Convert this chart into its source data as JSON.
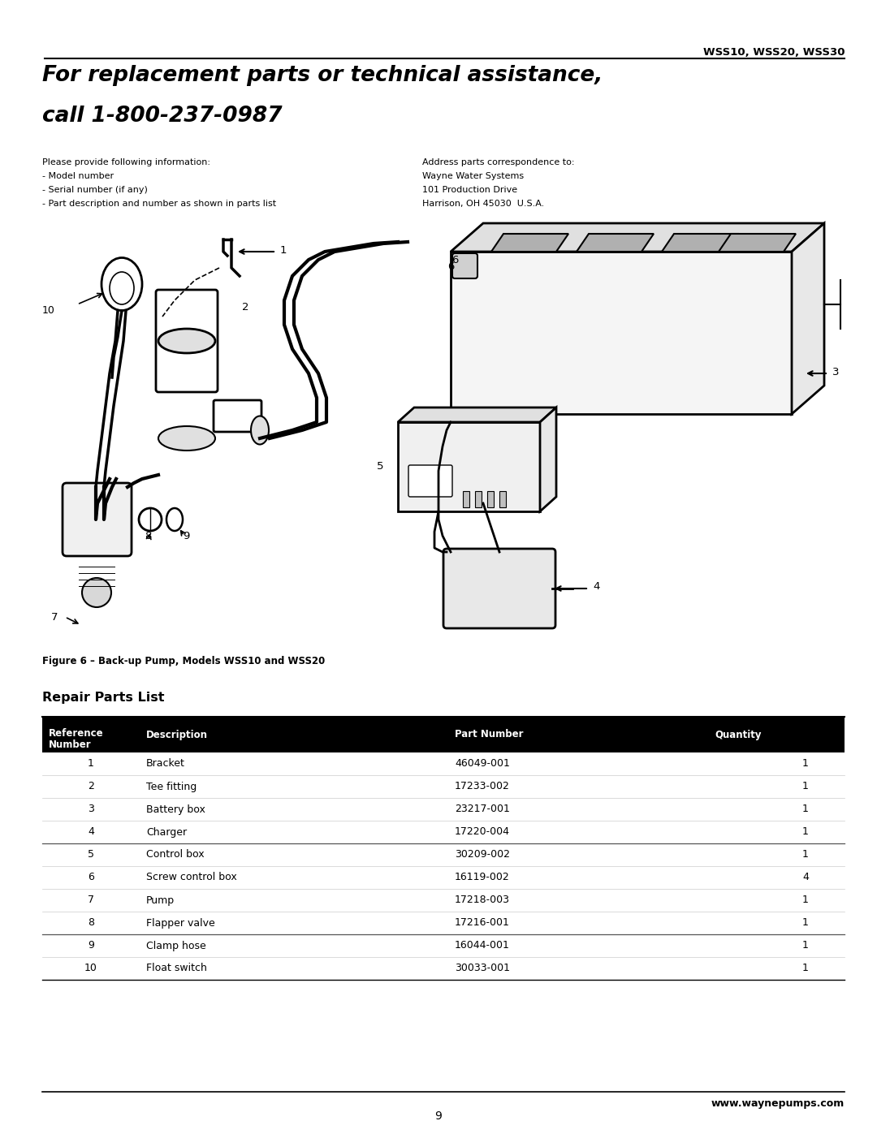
{
  "page_header_right": "WSS10, WSS20, WSS30",
  "main_title_line1": "For replacement parts or technical assistance,",
  "main_title_line2": "call 1-800-237-0987",
  "left_info_header": "Please provide following information:",
  "left_info_lines": [
    "- Model number",
    "- Serial number (if any)",
    "- Part description and number as shown in parts list"
  ],
  "right_info_header": "Address parts correspondence to:",
  "right_info_lines": [
    "Wayne Water Systems",
    "101 Production Drive",
    "Harrison, OH 45030  U.S.A."
  ],
  "figure_caption": "Figure 6 – Back-up Pump, Models WSS10 and WSS20",
  "table_title": "Repair Parts List",
  "table_rows": [
    [
      "1",
      "Bracket",
      "46049-001",
      "1"
    ],
    [
      "2",
      "Tee fitting",
      "17233-002",
      "1"
    ],
    [
      "3",
      "Battery box",
      "23217-001",
      "1"
    ],
    [
      "4",
      "Charger",
      "17220-004",
      "1"
    ],
    [
      "5",
      "Control box",
      "30209-002",
      "1"
    ],
    [
      "6",
      "Screw control box",
      "16119-002",
      "4"
    ],
    [
      "7",
      "Pump",
      "17218-003",
      "1"
    ],
    [
      "8",
      "Flapper valve",
      "17216-001",
      "1"
    ],
    [
      "9",
      "Clamp hose",
      "16044-001",
      "1"
    ],
    [
      "10",
      "Float switch",
      "30033-001",
      "1"
    ]
  ],
  "divider_rows_after": [
    3,
    7
  ],
  "footer_website": "www.waynepumps.com",
  "page_number": "9",
  "bg_color": "#ffffff",
  "header_bg": "#000000",
  "header_fg": "#ffffff",
  "text_color": "#000000",
  "line_color": "#000000"
}
